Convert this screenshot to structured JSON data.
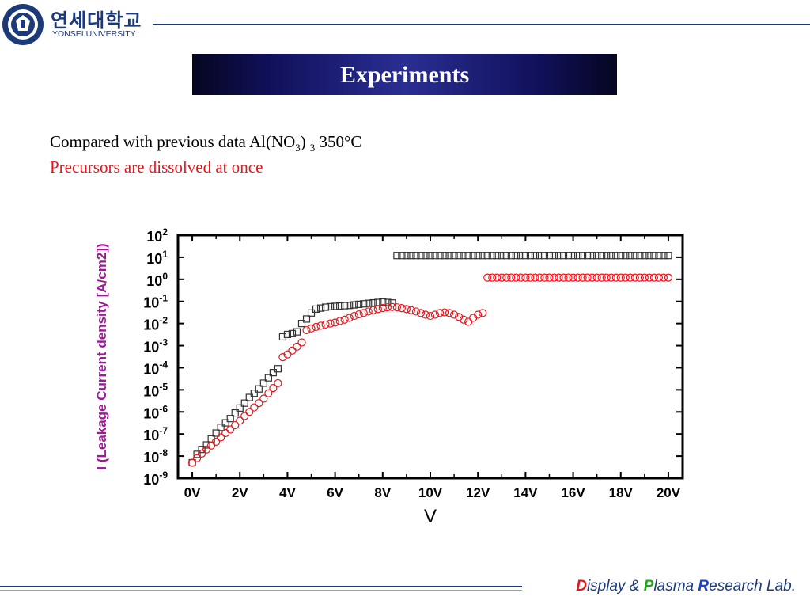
{
  "header": {
    "university_ko": "연세대학교",
    "university_en": "YONSEI UNIVERSITY",
    "seal_text": "YONSEI UNIVERSITY"
  },
  "slide": {
    "title": "Experiments",
    "line1": {
      "pre": "Compared with previous data Al(NO",
      "sub1": "3",
      "mid": ")",
      "sub2": "3",
      "post": " 350°C"
    },
    "line2": "Precursors are dissolved at once"
  },
  "footer": {
    "p1_initial": "D",
    "p1_rest": "isplay & ",
    "p2_initial": "P",
    "p2_rest": "lasma ",
    "p3_initial": "R",
    "p3_rest": "esearch Lab."
  },
  "colors": {
    "brand_navy": "#1c3a78",
    "ylabel": "#a0189a",
    "series_square": "#333333",
    "series_circle": "#e8141a",
    "note_red": "#e8141a"
  },
  "chart_data": {
    "type": "scatter",
    "xlabel": "V",
    "ylabel": "I (Leakage Current density [A/cm2])",
    "x_ticks": [
      "0V",
      "2V",
      "4V",
      "6V",
      "8V",
      "10V",
      "12V",
      "14V",
      "16V",
      "18V",
      "20V"
    ],
    "y_tick_exponents": [
      2,
      1,
      0,
      -1,
      -2,
      -3,
      -4,
      -5,
      -6,
      -7,
      -8,
      -9
    ],
    "y_tick_base": "10",
    "xlim": [
      -0.6,
      20.6
    ],
    "ylim_log10": [
      -9,
      2
    ],
    "yscale": "log",
    "grid": false,
    "legend": "none",
    "series": [
      {
        "marker": "square",
        "x": [
          0,
          0.2,
          0.4,
          0.6,
          0.8,
          1.0,
          1.2,
          1.4,
          1.6,
          1.8,
          2.0,
          2.2,
          2.4,
          2.6,
          2.8,
          3.0,
          3.2,
          3.4,
          3.6,
          3.8,
          4.0,
          4.2,
          4.4,
          4.6,
          4.8,
          5.0,
          5.2,
          5.4,
          5.6,
          5.8,
          6.0,
          6.2,
          6.4,
          6.6,
          6.8,
          7.0,
          7.2,
          7.4,
          7.6,
          7.8,
          8.0,
          8.2,
          8.4,
          8.6,
          8.8,
          9.0,
          9.2,
          9.4,
          9.6,
          9.8,
          10.0,
          10.2,
          10.4,
          10.6,
          10.8,
          11.0,
          11.2,
          11.4,
          11.6,
          11.8,
          12.0,
          12.2,
          12.4,
          12.6,
          12.8,
          13.0,
          13.2,
          13.4,
          13.6,
          13.8,
          14.0,
          14.2,
          14.4,
          14.6,
          14.8,
          15.0,
          15.2,
          15.4,
          15.6,
          15.8,
          16.0,
          16.2,
          16.4,
          16.6,
          16.8,
          17.0,
          17.2,
          17.4,
          17.6,
          17.8,
          18.0,
          18.2,
          18.4,
          18.6,
          18.8,
          19.0,
          19.2,
          19.4,
          19.6,
          19.8,
          20.0
        ],
        "y": [
          5e-09,
          1.2e-08,
          2e-08,
          3.2e-08,
          6e-08,
          1.1e-07,
          2e-07,
          3.2e-07,
          5e-07,
          9e-07,
          1.5e-06,
          2.5e-06,
          4.5e-06,
          7e-06,
          1.1e-05,
          2e-05,
          3.5e-05,
          6e-05,
          9e-05,
          0.0025,
          0.0032,
          0.0035,
          0.0042,
          0.01,
          0.016,
          0.03,
          0.045,
          0.05,
          0.055,
          0.058,
          0.06,
          0.062,
          0.064,
          0.066,
          0.07,
          0.074,
          0.078,
          0.082,
          0.086,
          0.09,
          0.094,
          0.09,
          0.085,
          12,
          12,
          12,
          12,
          12,
          12,
          12,
          12,
          12,
          12,
          12,
          12,
          12,
          12,
          12,
          12,
          12,
          12,
          12,
          12,
          12,
          12,
          12,
          12,
          12,
          12,
          12,
          12,
          12,
          12,
          12,
          12,
          12,
          12,
          12,
          12,
          12,
          12,
          12,
          12,
          12,
          12,
          12,
          12,
          12,
          12,
          12,
          12,
          12,
          12,
          12,
          12,
          12,
          12,
          12,
          12,
          12,
          12
        ]
      },
      {
        "marker": "circle",
        "x": [
          0,
          0.2,
          0.4,
          0.6,
          0.8,
          1.0,
          1.2,
          1.4,
          1.6,
          1.8,
          2.0,
          2.2,
          2.4,
          2.6,
          2.8,
          3.0,
          3.2,
          3.4,
          3.6,
          3.8,
          4.0,
          4.2,
          4.4,
          4.6,
          4.8,
          5.0,
          5.2,
          5.4,
          5.6,
          5.8,
          6.0,
          6.2,
          6.4,
          6.6,
          6.8,
          7.0,
          7.2,
          7.4,
          7.6,
          7.8,
          8.0,
          8.2,
          8.4,
          8.6,
          8.8,
          9.0,
          9.2,
          9.4,
          9.6,
          9.8,
          10.0,
          10.2,
          10.4,
          10.6,
          10.8,
          11.0,
          11.2,
          11.4,
          11.6,
          11.8,
          12.0,
          12.2,
          12.4,
          12.6,
          12.8,
          13.0,
          13.2,
          13.4,
          13.6,
          13.8,
          14.0,
          14.2,
          14.4,
          14.6,
          14.8,
          15.0,
          15.2,
          15.4,
          15.6,
          15.8,
          16.0,
          16.2,
          16.4,
          16.6,
          16.8,
          17.0,
          17.2,
          17.4,
          17.6,
          17.8,
          18.0,
          18.2,
          18.4,
          18.6,
          18.8,
          19.0,
          19.2,
          19.4,
          19.6,
          19.8,
          20.0
        ],
        "y": [
          5e-09,
          8e-09,
          1.3e-08,
          2e-08,
          3e-08,
          4.5e-08,
          7e-08,
          1.1e-07,
          1.6e-07,
          2.5e-07,
          4e-07,
          6.5e-07,
          1e-06,
          1.6e-06,
          2.5e-06,
          4e-06,
          7e-06,
          1.2e-05,
          2e-05,
          0.0003,
          0.0004,
          0.0006,
          0.0009,
          0.0014,
          0.005,
          0.006,
          0.007,
          0.008,
          0.009,
          0.01,
          0.011,
          0.013,
          0.015,
          0.018,
          0.022,
          0.026,
          0.03,
          0.035,
          0.04,
          0.045,
          0.05,
          0.054,
          0.056,
          0.054,
          0.05,
          0.045,
          0.04,
          0.035,
          0.03,
          0.025,
          0.022,
          0.025,
          0.03,
          0.032,
          0.03,
          0.025,
          0.02,
          0.015,
          0.012,
          0.018,
          0.025,
          0.03,
          1.2,
          1.2,
          1.2,
          1.2,
          1.2,
          1.2,
          1.2,
          1.2,
          1.2,
          1.2,
          1.2,
          1.2,
          1.2,
          1.2,
          1.2,
          1.2,
          1.2,
          1.2,
          1.2,
          1.2,
          1.2,
          1.2,
          1.2,
          1.2,
          1.2,
          1.2,
          1.2,
          1.2,
          1.2,
          1.2,
          1.2,
          1.2,
          1.2,
          1.2,
          1.2,
          1.2,
          1.2,
          1.2,
          1.2
        ]
      }
    ]
  }
}
